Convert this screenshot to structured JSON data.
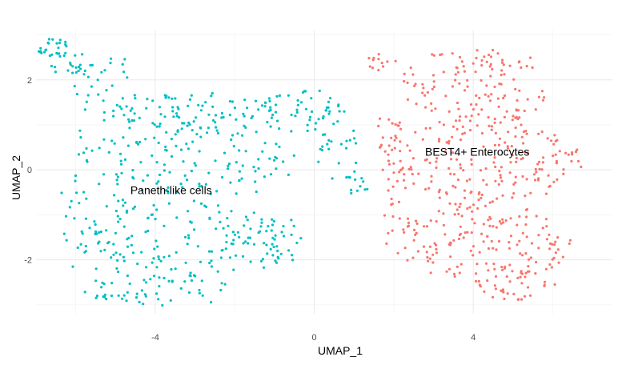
{
  "chart_data": {
    "type": "scatter",
    "title": "",
    "xlabel": "UMAP_1",
    "ylabel": "UMAP_2",
    "xlim": [
      -7.0,
      7.5
    ],
    "ylim": [
      -3.2,
      3.1
    ],
    "xticks": [
      -4,
      0,
      4
    ],
    "yticks": [
      -2,
      0,
      2
    ],
    "grid": true,
    "legend": "none",
    "series": [
      {
        "name": "Paneth-like cells",
        "color": "#00BFC4",
        "label": "Paneth-like cells",
        "label_pos": [
          -3.6,
          -0.45
        ],
        "approx_points": 640,
        "regions": [
          {
            "cx": -6.6,
            "cy": 2.75,
            "rx": 0.5,
            "ry": 0.25,
            "weight": 25
          },
          {
            "cx": -6.1,
            "cy": 2.4,
            "rx": 0.6,
            "ry": 0.5,
            "weight": 25
          },
          {
            "cx": -5.3,
            "cy": 1.9,
            "rx": 0.9,
            "ry": 0.7,
            "weight": 30
          },
          {
            "cx": -4.2,
            "cy": 1.35,
            "rx": 1.0,
            "ry": 0.35,
            "weight": 30
          },
          {
            "cx": -2.5,
            "cy": 1.2,
            "rx": 1.6,
            "ry": 0.55,
            "weight": 60
          },
          {
            "cx": -0.3,
            "cy": 1.3,
            "rx": 1.1,
            "ry": 0.5,
            "weight": 55
          },
          {
            "cx": 0.55,
            "cy": 0.4,
            "rx": 0.6,
            "ry": 0.7,
            "weight": 25
          },
          {
            "cx": 1.15,
            "cy": -0.35,
            "rx": 0.3,
            "ry": 0.35,
            "weight": 10
          },
          {
            "cx": -3.2,
            "cy": 0.2,
            "rx": 2.8,
            "ry": 0.9,
            "weight": 130
          },
          {
            "cx": -3.3,
            "cy": -1.6,
            "rx": 2.6,
            "ry": 0.9,
            "weight": 140
          },
          {
            "cx": -3.9,
            "cy": -2.7,
            "rx": 1.9,
            "ry": 0.35,
            "weight": 50
          },
          {
            "cx": -1.2,
            "cy": -1.6,
            "rx": 0.9,
            "ry": 0.7,
            "weight": 40
          },
          {
            "cx": -5.6,
            "cy": -0.6,
            "rx": 0.9,
            "ry": 1.9,
            "weight": 50
          }
        ]
      },
      {
        "name": "BEST4+ Enterocytes",
        "color": "#F8766D",
        "label": "BEST4+ Enterocytes",
        "label_pos": [
          4.1,
          0.4
        ],
        "approx_points": 560,
        "regions": [
          {
            "cx": 4.1,
            "cy": 1.9,
            "rx": 1.9,
            "ry": 0.9,
            "weight": 120
          },
          {
            "cx": 4.2,
            "cy": 0.2,
            "rx": 2.6,
            "ry": 1.0,
            "weight": 190
          },
          {
            "cx": 4.3,
            "cy": -1.6,
            "rx": 2.2,
            "ry": 0.9,
            "weight": 150
          },
          {
            "cx": 5.0,
            "cy": -2.5,
            "rx": 1.1,
            "ry": 0.4,
            "weight": 45
          },
          {
            "cx": 1.6,
            "cy": 2.4,
            "rx": 0.45,
            "ry": 0.2,
            "weight": 12
          },
          {
            "cx": 2.05,
            "cy": -0.9,
            "rx": 0.35,
            "ry": 1.2,
            "weight": 25
          },
          {
            "cx": 1.85,
            "cy": 0.85,
            "rx": 0.35,
            "ry": 0.5,
            "weight": 18
          }
        ]
      }
    ]
  }
}
